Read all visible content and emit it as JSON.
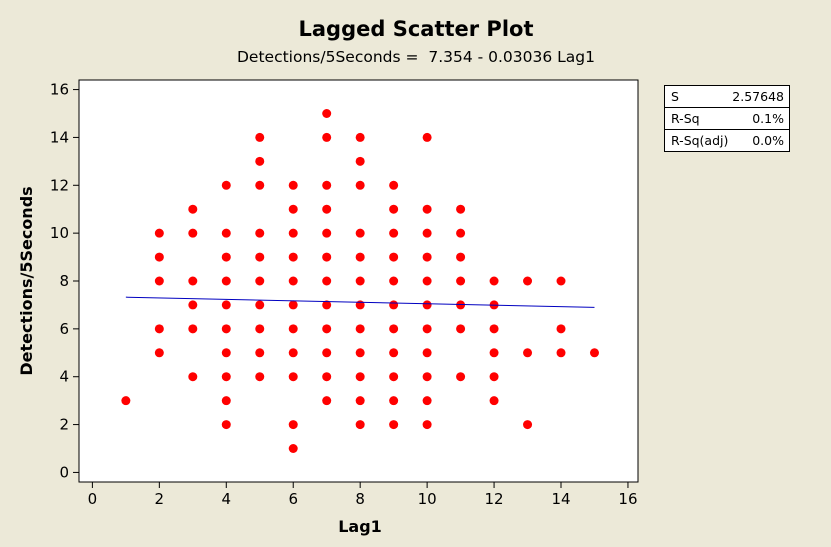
{
  "chart_data": {
    "type": "scatter",
    "title": "Lagged Scatter Plot",
    "subtitle": "Detections/5Seconds =  7.354 - 0.03036 Lag1",
    "xlabel": "Lag1",
    "ylabel": "Detections/5Seconds",
    "xlim": [
      -0.4,
      16.3
    ],
    "ylim": [
      -0.4,
      16.4
    ],
    "xticks": [
      0,
      2,
      4,
      6,
      8,
      10,
      12,
      14,
      16
    ],
    "yticks": [
      0,
      2,
      4,
      6,
      8,
      10,
      12,
      14,
      16
    ],
    "grid": false,
    "point_color": "#FF0000",
    "line_color": "#0000C0",
    "points": [
      [
        1,
        3
      ],
      [
        2,
        5
      ],
      [
        2,
        6
      ],
      [
        2,
        8
      ],
      [
        2,
        9
      ],
      [
        2,
        10
      ],
      [
        3,
        4
      ],
      [
        3,
        6
      ],
      [
        3,
        7
      ],
      [
        3,
        8
      ],
      [
        3,
        10
      ],
      [
        3,
        11
      ],
      [
        4,
        2
      ],
      [
        4,
        3
      ],
      [
        4,
        4
      ],
      [
        4,
        5
      ],
      [
        4,
        6
      ],
      [
        4,
        7
      ],
      [
        4,
        8
      ],
      [
        4,
        9
      ],
      [
        4,
        10
      ],
      [
        4,
        12
      ],
      [
        5,
        4
      ],
      [
        5,
        5
      ],
      [
        5,
        6
      ],
      [
        5,
        7
      ],
      [
        5,
        8
      ],
      [
        5,
        9
      ],
      [
        5,
        10
      ],
      [
        5,
        12
      ],
      [
        5,
        13
      ],
      [
        5,
        14
      ],
      [
        6,
        1
      ],
      [
        6,
        2
      ],
      [
        6,
        4
      ],
      [
        6,
        5
      ],
      [
        6,
        6
      ],
      [
        6,
        7
      ],
      [
        6,
        8
      ],
      [
        6,
        9
      ],
      [
        6,
        10
      ],
      [
        6,
        11
      ],
      [
        6,
        12
      ],
      [
        7,
        3
      ],
      [
        7,
        4
      ],
      [
        7,
        5
      ],
      [
        7,
        6
      ],
      [
        7,
        7
      ],
      [
        7,
        8
      ],
      [
        7,
        9
      ],
      [
        7,
        10
      ],
      [
        7,
        11
      ],
      [
        7,
        12
      ],
      [
        7,
        14
      ],
      [
        7,
        15
      ],
      [
        8,
        2
      ],
      [
        8,
        3
      ],
      [
        8,
        4
      ],
      [
        8,
        5
      ],
      [
        8,
        6
      ],
      [
        8,
        7
      ],
      [
        8,
        8
      ],
      [
        8,
        9
      ],
      [
        8,
        10
      ],
      [
        8,
        12
      ],
      [
        8,
        13
      ],
      [
        8,
        14
      ],
      [
        9,
        2
      ],
      [
        9,
        3
      ],
      [
        9,
        4
      ],
      [
        9,
        5
      ],
      [
        9,
        6
      ],
      [
        9,
        7
      ],
      [
        9,
        8
      ],
      [
        9,
        9
      ],
      [
        9,
        10
      ],
      [
        9,
        11
      ],
      [
        9,
        12
      ],
      [
        10,
        2
      ],
      [
        10,
        3
      ],
      [
        10,
        4
      ],
      [
        10,
        5
      ],
      [
        10,
        6
      ],
      [
        10,
        7
      ],
      [
        10,
        8
      ],
      [
        10,
        9
      ],
      [
        10,
        10
      ],
      [
        10,
        11
      ],
      [
        10,
        14
      ],
      [
        11,
        4
      ],
      [
        11,
        6
      ],
      [
        11,
        7
      ],
      [
        11,
        8
      ],
      [
        11,
        9
      ],
      [
        11,
        10
      ],
      [
        11,
        11
      ],
      [
        12,
        3
      ],
      [
        12,
        4
      ],
      [
        12,
        5
      ],
      [
        12,
        6
      ],
      [
        12,
        7
      ],
      [
        12,
        8
      ],
      [
        13,
        2
      ],
      [
        13,
        5
      ],
      [
        13,
        8
      ],
      [
        14,
        5
      ],
      [
        14,
        6
      ],
      [
        14,
        8
      ],
      [
        15,
        5
      ]
    ],
    "regression": {
      "intercept": 7.354,
      "slope": -0.03036,
      "x_range": [
        1,
        15
      ]
    }
  },
  "stats": [
    {
      "label": "S",
      "value": "2.57648"
    },
    {
      "label": "R-Sq",
      "value": "0.1%"
    },
    {
      "label": "R-Sq(adj)",
      "value": "0.0%"
    }
  ]
}
